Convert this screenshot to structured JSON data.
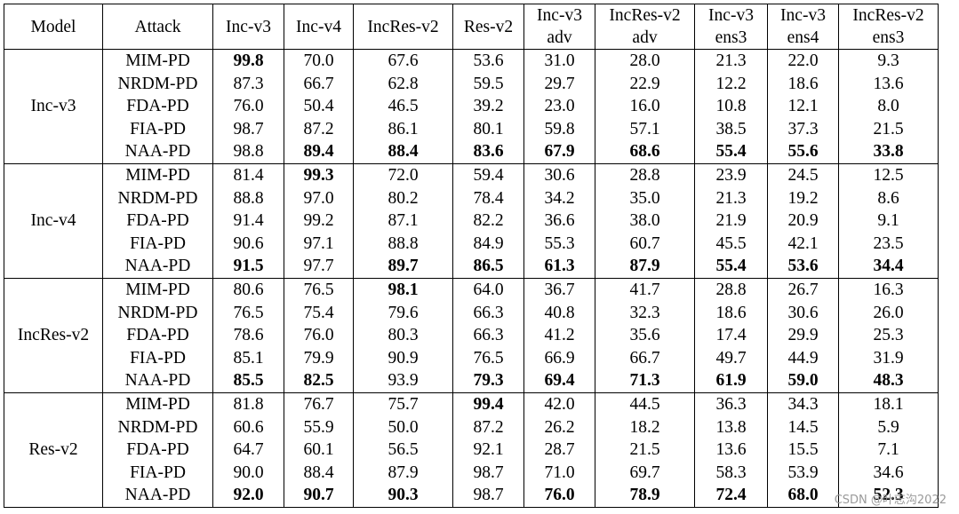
{
  "header": {
    "model": "Model",
    "attack": "Attack",
    "cols": [
      {
        "l1": "Inc-v3",
        "l2": ""
      },
      {
        "l1": "Inc-v4",
        "l2": ""
      },
      {
        "l1": "IncRes-v2",
        "l2": ""
      },
      {
        "l1": "Res-v2",
        "l2": ""
      },
      {
        "l1": "Inc-v3",
        "l2": "adv"
      },
      {
        "l1": "IncRes-v2",
        "l2": "adv"
      },
      {
        "l1": "Inc-v3",
        "l2": "ens3"
      },
      {
        "l1": "Inc-v3",
        "l2": "ens4"
      },
      {
        "l1": "IncRes-v2",
        "l2": "ens3"
      }
    ]
  },
  "groups": [
    {
      "model": "Inc-v3",
      "rows": [
        {
          "attack": "MIM-PD",
          "values": [
            "99.8",
            "70.0",
            "67.6",
            "53.6",
            "31.0",
            "28.0",
            "21.3",
            "22.0",
            "9.3"
          ],
          "bold": [
            0
          ]
        },
        {
          "attack": "NRDM-PD",
          "values": [
            "87.3",
            "66.7",
            "62.8",
            "59.5",
            "29.7",
            "22.9",
            "12.2",
            "18.6",
            "13.6"
          ],
          "bold": []
        },
        {
          "attack": "FDA-PD",
          "values": [
            "76.0",
            "50.4",
            "46.5",
            "39.2",
            "23.0",
            "16.0",
            "10.8",
            "12.1",
            "8.0"
          ],
          "bold": []
        },
        {
          "attack": "FIA-PD",
          "values": [
            "98.7",
            "87.2",
            "86.1",
            "80.1",
            "59.8",
            "57.1",
            "38.5",
            "37.3",
            "21.5"
          ],
          "bold": []
        },
        {
          "attack": "NAA-PD",
          "values": [
            "98.8",
            "89.4",
            "88.4",
            "83.6",
            "67.9",
            "68.6",
            "55.4",
            "55.6",
            "33.8"
          ],
          "bold": [
            1,
            2,
            3,
            4,
            5,
            6,
            7,
            8
          ]
        }
      ]
    },
    {
      "model": "Inc-v4",
      "rows": [
        {
          "attack": "MIM-PD",
          "values": [
            "81.4",
            "99.3",
            "72.0",
            "59.4",
            "30.6",
            "28.8",
            "23.9",
            "24.5",
            "12.5"
          ],
          "bold": [
            1
          ]
        },
        {
          "attack": "NRDM-PD",
          "values": [
            "88.8",
            "97.0",
            "80.2",
            "78.4",
            "34.2",
            "35.0",
            "21.3",
            "19.2",
            "8.6"
          ],
          "bold": []
        },
        {
          "attack": "FDA-PD",
          "values": [
            "91.4",
            "99.2",
            "87.1",
            "82.2",
            "36.6",
            "38.0",
            "21.9",
            "20.9",
            "9.1"
          ],
          "bold": []
        },
        {
          "attack": "FIA-PD",
          "values": [
            "90.6",
            "97.1",
            "88.8",
            "84.9",
            "55.3",
            "60.7",
            "45.5",
            "42.1",
            "23.5"
          ],
          "bold": []
        },
        {
          "attack": "NAA-PD",
          "values": [
            "91.5",
            "97.7",
            "89.7",
            "86.5",
            "61.3",
            "87.9",
            "55.4",
            "53.6",
            "34.4"
          ],
          "bold": [
            0,
            2,
            3,
            4,
            5,
            6,
            7,
            8
          ]
        }
      ]
    },
    {
      "model": "IncRes-v2",
      "rows": [
        {
          "attack": "MIM-PD",
          "values": [
            "80.6",
            "76.5",
            "98.1",
            "64.0",
            "36.7",
            "41.7",
            "28.8",
            "26.7",
            "16.3"
          ],
          "bold": [
            2
          ]
        },
        {
          "attack": "NRDM-PD",
          "values": [
            "76.5",
            "75.4",
            "79.6",
            "66.3",
            "40.8",
            "32.3",
            "18.6",
            "30.6",
            "26.0"
          ],
          "bold": []
        },
        {
          "attack": "FDA-PD",
          "values": [
            "78.6",
            "76.0",
            "80.3",
            "66.3",
            "41.2",
            "35.6",
            "17.4",
            "29.9",
            "25.3"
          ],
          "bold": []
        },
        {
          "attack": "FIA-PD",
          "values": [
            "85.1",
            "79.9",
            "90.9",
            "76.5",
            "66.9",
            "66.7",
            "49.7",
            "44.9",
            "31.9"
          ],
          "bold": []
        },
        {
          "attack": "NAA-PD",
          "values": [
            "85.5",
            "82.5",
            "93.9",
            "79.3",
            "69.4",
            "71.3",
            "61.9",
            "59.0",
            "48.3"
          ],
          "bold": [
            0,
            1,
            3,
            4,
            5,
            6,
            7,
            8
          ]
        }
      ]
    },
    {
      "model": "Res-v2",
      "rows": [
        {
          "attack": "MIM-PD",
          "values": [
            "81.8",
            "76.7",
            "75.7",
            "99.4",
            "42.0",
            "44.5",
            "36.3",
            "34.3",
            "18.1"
          ],
          "bold": [
            3
          ]
        },
        {
          "attack": "NRDM-PD",
          "values": [
            "60.6",
            "55.9",
            "50.0",
            "87.2",
            "26.2",
            "18.2",
            "13.8",
            "14.5",
            "5.9"
          ],
          "bold": []
        },
        {
          "attack": "FDA-PD",
          "values": [
            "64.7",
            "60.1",
            "56.5",
            "92.1",
            "28.7",
            "21.5",
            "13.6",
            "15.5",
            "7.1"
          ],
          "bold": []
        },
        {
          "attack": "FIA-PD",
          "values": [
            "90.0",
            "88.4",
            "87.9",
            "98.7",
            "71.0",
            "69.7",
            "58.3",
            "53.9",
            "34.6"
          ],
          "bold": []
        },
        {
          "attack": "NAA-PD",
          "values": [
            "92.0",
            "90.7",
            "90.3",
            "98.7",
            "76.0",
            "78.9",
            "72.4",
            "68.0",
            "52.3"
          ],
          "bold": [
            0,
            1,
            2,
            4,
            5,
            6,
            7,
            8
          ]
        }
      ]
    }
  ],
  "watermark": "CSDN @叶志沟2022"
}
